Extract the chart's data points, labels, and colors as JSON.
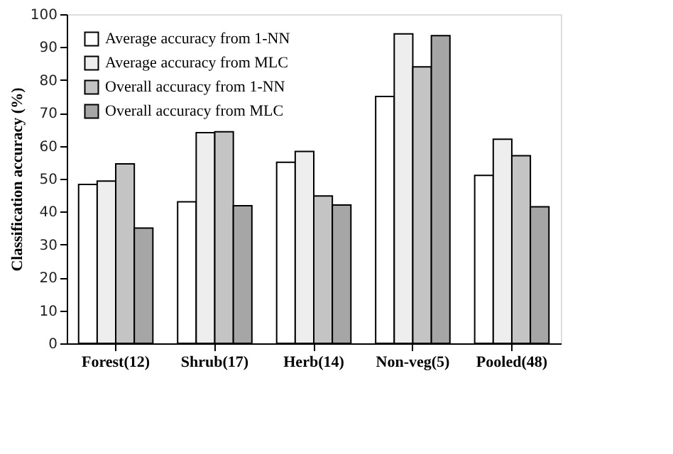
{
  "chart_data": {
    "type": "bar",
    "ylabel": "Classification accuracy (%)",
    "categories": [
      "Forest(12)",
      "Shrub(17)",
      "Herb(14)",
      "Non-veg(5)",
      "Pooled(48)"
    ],
    "series": [
      {
        "name": "Average accuracy from 1-NN",
        "color": "#ffffff",
        "values": [
          48.3,
          43,
          55,
          75,
          51
        ]
      },
      {
        "name": "Average accuracy from MLC",
        "color": "#eeeeee",
        "values": [
          49.3,
          64,
          58.3,
          94,
          62
        ]
      },
      {
        "name": "Overall accuracy from 1-NN",
        "color": "#c4c4c4",
        "values": [
          54.5,
          64.3,
          44.8,
          84,
          57
        ]
      },
      {
        "name": "Overall accuracy from MLC",
        "color": "#a6a6a6",
        "values": [
          35,
          41.8,
          42,
          93.5,
          41.5
        ]
      }
    ],
    "ylim": [
      0,
      100
    ],
    "yticks": [
      0,
      10,
      20,
      30,
      40,
      50,
      60,
      70,
      80,
      90,
      100
    ],
    "grid": false,
    "legend": "top left"
  }
}
